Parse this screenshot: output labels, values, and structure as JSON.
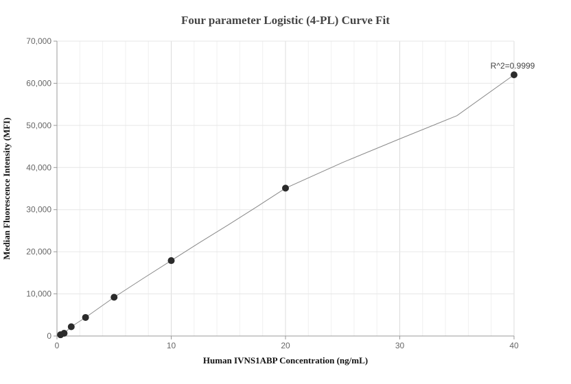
{
  "chart_data": {
    "type": "scatter",
    "title": "Four parameter Logistic (4-PL) Curve Fit",
    "xlabel": "Human IVNS1ABP Concentration (ng/mL)",
    "ylabel": "Median Fluorescence Intensity (MFI)",
    "xlim": [
      0,
      40
    ],
    "ylim": [
      0,
      70000
    ],
    "x_ticks": [
      0,
      10,
      20,
      30,
      40
    ],
    "y_ticks": [
      0,
      10000,
      20000,
      30000,
      40000,
      50000,
      60000,
      70000
    ],
    "x_tick_labels": [
      "0",
      "10",
      "20",
      "30",
      "40"
    ],
    "y_tick_labels": [
      "0",
      "10,000",
      "20,000",
      "30,000",
      "40,000",
      "50,000",
      "60,000",
      "70,000"
    ],
    "grid": true,
    "legend": "none",
    "points": [
      {
        "x": 0.3125,
        "y": 300
      },
      {
        "x": 0.625,
        "y": 650
      },
      {
        "x": 1.25,
        "y": 2200
      },
      {
        "x": 2.5,
        "y": 4400
      },
      {
        "x": 5,
        "y": 9200
      },
      {
        "x": 10,
        "y": 17900
      },
      {
        "x": 20,
        "y": 35100
      },
      {
        "x": 40,
        "y": 62000
      }
    ],
    "fit_curve": {
      "type": "4-PL",
      "x": [
        0,
        0.3125,
        0.625,
        1.25,
        2.5,
        5,
        7.5,
        10,
        12.5,
        15,
        17.5,
        20,
        25,
        30,
        35,
        40
      ],
      "y": [
        0,
        300,
        650,
        2200,
        4400,
        9200,
        13600,
        17900,
        22200,
        26400,
        30700,
        35100,
        41200,
        46800,
        52300,
        62000
      ]
    },
    "annotation": "R^2=0.9999",
    "colors": {
      "points": "#2b2b2b",
      "curve": "#888888",
      "grid": "#e6e6e6",
      "axis": "#999999"
    }
  }
}
